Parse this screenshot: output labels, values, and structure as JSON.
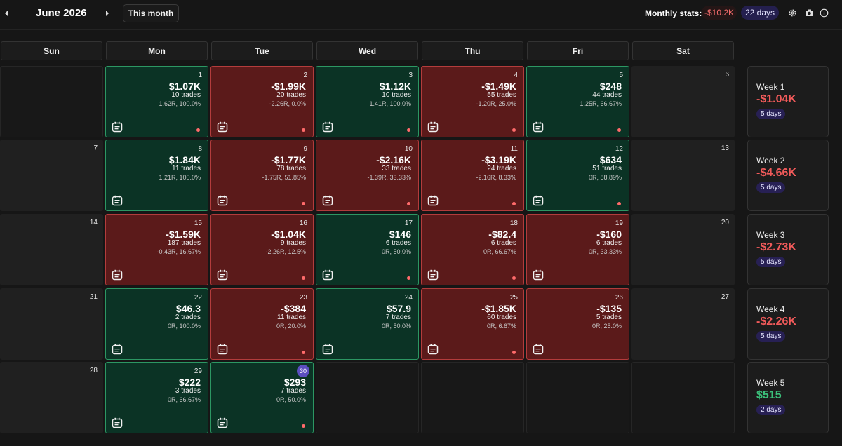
{
  "header": {
    "month_title": "June 2026",
    "this_month_label": "This month",
    "stats_label": "Monthly stats:",
    "stats_pnl": "-$10.2K",
    "stats_days": "22 days",
    "icons": [
      "chevron-left-icon",
      "chevron-right-icon",
      "gear-icon",
      "camera-icon",
      "info-icon"
    ]
  },
  "weekdays": [
    "Sun",
    "Mon",
    "Tue",
    "Wed",
    "Thu",
    "Fri",
    "Sat"
  ],
  "colors": {
    "profit_bg": "#0b3325",
    "loss_bg": "#5b1a1a",
    "profit_text": "#3bbf7a",
    "loss_text": "#f05a5a",
    "accent": "#5b4ec0"
  },
  "weeks": [
    {
      "days": [
        {
          "type": "blank"
        },
        {
          "num": "1",
          "type": "green",
          "pnl": "$1.07K",
          "trades": "10 trades",
          "rr": "1.62R, 100.0%",
          "dot": true
        },
        {
          "num": "2",
          "type": "red",
          "pnl": "-$1.99K",
          "trades": "20 trades",
          "rr": "-2.26R, 0.0%",
          "dot": true
        },
        {
          "num": "3",
          "type": "green",
          "pnl": "$1.12K",
          "trades": "10 trades",
          "rr": "1.41R, 100.0%",
          "dot": true
        },
        {
          "num": "4",
          "type": "red",
          "pnl": "-$1.49K",
          "trades": "55 trades",
          "rr": "-1.20R, 25.0%",
          "dot": true
        },
        {
          "num": "5",
          "type": "green",
          "pnl": "$248",
          "trades": "44 trades",
          "rr": "1.25R, 66.67%",
          "dot": true
        },
        {
          "num": "6",
          "type": "empty"
        }
      ],
      "summary": {
        "title": "Week 1",
        "pnl": "-$1.04K",
        "sign": "neg",
        "days": "5 days"
      }
    },
    {
      "days": [
        {
          "num": "7",
          "type": "empty"
        },
        {
          "num": "8",
          "type": "green",
          "pnl": "$1.84K",
          "trades": "11 trades",
          "rr": "1.21R, 100.0%",
          "dot": false
        },
        {
          "num": "9",
          "type": "red",
          "pnl": "-$1.77K",
          "trades": "78 trades",
          "rr": "-1.75R, 51.85%",
          "dot": true
        },
        {
          "num": "10",
          "type": "red",
          "pnl": "-$2.16K",
          "trades": "33 trades",
          "rr": "-1.39R, 33.33%",
          "dot": true
        },
        {
          "num": "11",
          "type": "red",
          "pnl": "-$3.19K",
          "trades": "24 trades",
          "rr": "-2.16R, 8.33%",
          "dot": true
        },
        {
          "num": "12",
          "type": "green",
          "pnl": "$634",
          "trades": "51 trades",
          "rr": "0R, 88.89%",
          "dot": true
        },
        {
          "num": "13",
          "type": "empty"
        }
      ],
      "summary": {
        "title": "Week 2",
        "pnl": "-$4.66K",
        "sign": "neg",
        "days": "5 days"
      }
    },
    {
      "days": [
        {
          "num": "14",
          "type": "empty"
        },
        {
          "num": "15",
          "type": "red",
          "pnl": "-$1.59K",
          "trades": "187 trades",
          "rr": "-0.43R, 16.67%",
          "dot": false
        },
        {
          "num": "16",
          "type": "red",
          "pnl": "-$1.04K",
          "trades": "9 trades",
          "rr": "-2.26R, 12.5%",
          "dot": true
        },
        {
          "num": "17",
          "type": "green",
          "pnl": "$146",
          "trades": "6 trades",
          "rr": "0R, 50.0%",
          "dot": true
        },
        {
          "num": "18",
          "type": "red",
          "pnl": "-$82.4",
          "trades": "6 trades",
          "rr": "0R, 66.67%",
          "dot": true
        },
        {
          "num": "19",
          "type": "red",
          "pnl": "-$160",
          "trades": "6 trades",
          "rr": "0R, 33.33%",
          "dot": false
        },
        {
          "num": "20",
          "type": "empty"
        }
      ],
      "summary": {
        "title": "Week 3",
        "pnl": "-$2.73K",
        "sign": "neg",
        "days": "5 days"
      }
    },
    {
      "days": [
        {
          "num": "21",
          "type": "empty"
        },
        {
          "num": "22",
          "type": "green",
          "pnl": "$46.3",
          "trades": "2 trades",
          "rr": "0R, 100.0%",
          "dot": false
        },
        {
          "num": "23",
          "type": "red",
          "pnl": "-$384",
          "trades": "11 trades",
          "rr": "0R, 20.0%",
          "dot": true
        },
        {
          "num": "24",
          "type": "green",
          "pnl": "$57.9",
          "trades": "7 trades",
          "rr": "0R, 50.0%",
          "dot": false
        },
        {
          "num": "25",
          "type": "red",
          "pnl": "-$1.85K",
          "trades": "60 trades",
          "rr": "0R, 6.67%",
          "dot": true
        },
        {
          "num": "26",
          "type": "red",
          "pnl": "-$135",
          "trades": "5 trades",
          "rr": "0R, 25.0%",
          "dot": false
        },
        {
          "num": "27",
          "type": "empty"
        }
      ],
      "summary": {
        "title": "Week 4",
        "pnl": "-$2.26K",
        "sign": "neg",
        "days": "5 days"
      }
    },
    {
      "days": [
        {
          "num": "28",
          "type": "empty"
        },
        {
          "num": "29",
          "type": "green",
          "pnl": "$222",
          "trades": "3 trades",
          "rr": "0R, 66.67%",
          "dot": false
        },
        {
          "num": "30",
          "type": "green",
          "pnl": "$293",
          "trades": "7 trades",
          "rr": "0R, 50.0%",
          "dot": true,
          "today": true
        },
        {
          "type": "blank"
        },
        {
          "type": "blank"
        },
        {
          "type": "blank"
        },
        {
          "type": "blank"
        }
      ],
      "summary": {
        "title": "Week 5",
        "pnl": "$515",
        "sign": "pos",
        "days": "2 days"
      }
    }
  ]
}
